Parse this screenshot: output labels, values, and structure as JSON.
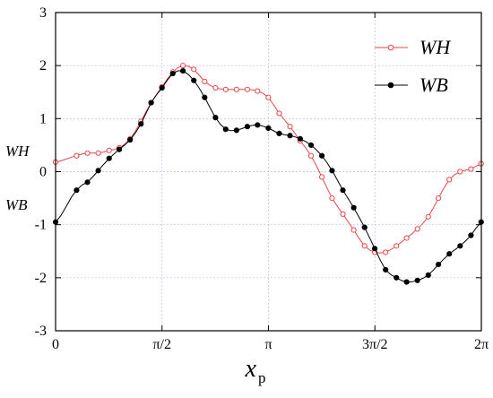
{
  "chart_data": {
    "type": "line",
    "title": "",
    "xlabel": "x",
    "xlabel_subscript": "p",
    "ylabel_lines": [
      "WH",
      "WB"
    ],
    "xlim": [
      0,
      6.283185
    ],
    "ylim": [
      -3,
      3
    ],
    "xticks": [
      0,
      1.570796,
      3.141593,
      4.712389,
      6.283185
    ],
    "xtick_labels": [
      "0",
      "π/2",
      "π",
      "3π/2",
      "2π"
    ],
    "yticks": [
      -3,
      -2,
      -1,
      0,
      1,
      2,
      3
    ],
    "ytick_labels": [
      "-3",
      "-2",
      "-1",
      "0",
      "1",
      "2",
      "3"
    ],
    "grid": true,
    "legend_position": "top-right",
    "x": [
      0.0,
      0.31,
      0.47,
      0.63,
      0.79,
      0.94,
      1.1,
      1.26,
      1.41,
      1.57,
      1.73,
      1.88,
      2.04,
      2.2,
      2.36,
      2.51,
      2.67,
      2.83,
      2.98,
      3.14,
      3.3,
      3.46,
      3.61,
      3.77,
      3.93,
      4.08,
      4.24,
      4.4,
      4.56,
      4.71,
      4.87,
      5.03,
      5.18,
      5.34,
      5.5,
      5.65,
      5.81,
      5.97,
      6.13,
      6.28
    ],
    "series": [
      {
        "name": "WH",
        "color": "#e8474b",
        "marker": "open-circle",
        "values": [
          0.18,
          0.3,
          0.35,
          0.35,
          0.4,
          0.45,
          0.62,
          0.95,
          1.3,
          1.6,
          1.88,
          2.0,
          1.93,
          1.7,
          1.58,
          1.55,
          1.55,
          1.55,
          1.52,
          1.4,
          1.1,
          0.85,
          0.58,
          0.3,
          -0.1,
          -0.5,
          -0.8,
          -1.1,
          -1.4,
          -1.52,
          -1.52,
          -1.4,
          -1.25,
          -1.08,
          -0.85,
          -0.5,
          -0.15,
          0.0,
          0.05,
          0.15
        ]
      },
      {
        "name": "WB",
        "color": "#000000",
        "marker": "filled-circle",
        "values": [
          -0.95,
          -0.35,
          -0.2,
          0.02,
          0.25,
          0.42,
          0.6,
          0.9,
          1.3,
          1.58,
          1.85,
          1.9,
          1.72,
          1.4,
          1.02,
          0.8,
          0.78,
          0.85,
          0.88,
          0.82,
          0.72,
          0.68,
          0.62,
          0.5,
          0.3,
          0.02,
          -0.35,
          -0.68,
          -1.05,
          -1.45,
          -1.85,
          -2.0,
          -2.08,
          -2.05,
          -1.95,
          -1.75,
          -1.55,
          -1.4,
          -1.2,
          -0.95
        ]
      }
    ]
  }
}
